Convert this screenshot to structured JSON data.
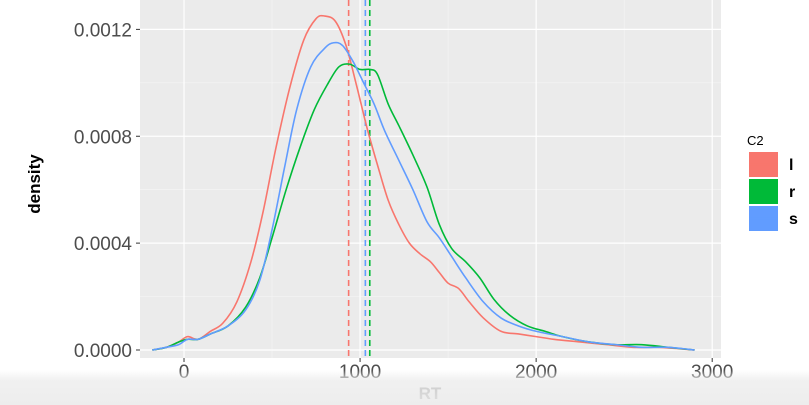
{
  "chart_data": {
    "type": "line",
    "title": "",
    "xlabel": "RT",
    "ylabel": "density",
    "xlim": [
      -250,
      3050
    ],
    "ylim": [
      -3e-05,
      0.00131
    ],
    "x_ticks": [
      0,
      1000,
      2000,
      3000
    ],
    "x_tick_labels": [
      "0",
      "1000",
      "2000",
      "3000"
    ],
    "y_ticks": [
      0.0,
      0.0004,
      0.0008,
      0.0012
    ],
    "y_tick_labels": [
      "0.0000",
      "0.0004",
      "0.0008",
      "0.0012"
    ],
    "grid": true,
    "legend": {
      "title": "C2",
      "placement": "right"
    },
    "series": [
      {
        "name": "l",
        "color": "#F8766D",
        "mean": 935,
        "points": [
          [
            -180,
            0.0
          ],
          [
            -100,
            1e-05
          ],
          [
            -30,
            3e-05
          ],
          [
            20,
            5e-05
          ],
          [
            80,
            4e-05
          ],
          [
            150,
            7e-05
          ],
          [
            220,
            0.0001
          ],
          [
            300,
            0.00018
          ],
          [
            380,
            0.00033
          ],
          [
            450,
            0.00052
          ],
          [
            520,
            0.00075
          ],
          [
            600,
            0.00098
          ],
          [
            680,
            0.00116
          ],
          [
            750,
            0.00124
          ],
          [
            800,
            0.00125
          ],
          [
            860,
            0.00123
          ],
          [
            920,
            0.00114
          ],
          [
            980,
            0.00099
          ],
          [
            1040,
            0.00083
          ],
          [
            1100,
            0.00069
          ],
          [
            1160,
            0.00056
          ],
          [
            1220,
            0.00047
          ],
          [
            1280,
            0.0004
          ],
          [
            1340,
            0.00036
          ],
          [
            1400,
            0.00033
          ],
          [
            1450,
            0.00029
          ],
          [
            1500,
            0.00025
          ],
          [
            1560,
            0.00023
          ],
          [
            1620,
            0.00018
          ],
          [
            1700,
            0.00012
          ],
          [
            1800,
            7e-05
          ],
          [
            1900,
            6e-05
          ],
          [
            2000,
            5e-05
          ],
          [
            2100,
            4e-05
          ],
          [
            2250,
            3e-05
          ],
          [
            2400,
            2e-05
          ],
          [
            2550,
            1e-05
          ],
          [
            2700,
            1e-05
          ],
          [
            2900,
            0.0
          ]
        ]
      },
      {
        "name": "r",
        "color": "#00BA38",
        "mean": 1055,
        "points": [
          [
            -180,
            0.0
          ],
          [
            -100,
            1e-05
          ],
          [
            -30,
            3e-05
          ],
          [
            20,
            4e-05
          ],
          [
            80,
            4e-05
          ],
          [
            150,
            6e-05
          ],
          [
            250,
            9e-05
          ],
          [
            350,
            0.00016
          ],
          [
            430,
            0.00027
          ],
          [
            500,
            0.00042
          ],
          [
            580,
            0.0006
          ],
          [
            660,
            0.00076
          ],
          [
            740,
            0.0009
          ],
          [
            820,
            0.001
          ],
          [
            880,
            0.00106
          ],
          [
            940,
            0.00107
          ],
          [
            1000,
            0.00105
          ],
          [
            1060,
            0.00105
          ],
          [
            1100,
            0.00103
          ],
          [
            1160,
            0.00092
          ],
          [
            1220,
            0.00084
          ],
          [
            1300,
            0.00073
          ],
          [
            1380,
            0.00061
          ],
          [
            1450,
            0.00047
          ],
          [
            1520,
            0.00038
          ],
          [
            1600,
            0.00033
          ],
          [
            1680,
            0.00027
          ],
          [
            1760,
            0.00019
          ],
          [
            1850,
            0.00013
          ],
          [
            1950,
            9e-05
          ],
          [
            2050,
            7e-05
          ],
          [
            2150,
            5e-05
          ],
          [
            2300,
            3e-05
          ],
          [
            2450,
            2e-05
          ],
          [
            2600,
            2e-05
          ],
          [
            2750,
            1e-05
          ],
          [
            2900,
            0.0
          ]
        ]
      },
      {
        "name": "s",
        "color": "#619CFF",
        "mean": 1030,
        "points": [
          [
            -180,
            0.0
          ],
          [
            -100,
            1e-05
          ],
          [
            -30,
            2e-05
          ],
          [
            20,
            4e-05
          ],
          [
            80,
            4e-05
          ],
          [
            150,
            6e-05
          ],
          [
            250,
            9e-05
          ],
          [
            350,
            0.00015
          ],
          [
            430,
            0.00026
          ],
          [
            500,
            0.00045
          ],
          [
            570,
            0.00068
          ],
          [
            640,
            0.0009
          ],
          [
            720,
            0.00106
          ],
          [
            800,
            0.00113
          ],
          [
            850,
            0.00115
          ],
          [
            900,
            0.00114
          ],
          [
            960,
            0.00108
          ],
          [
            1020,
            0.001
          ],
          [
            1080,
            0.00092
          ],
          [
            1140,
            0.00082
          ],
          [
            1220,
            0.00071
          ],
          [
            1300,
            0.0006
          ],
          [
            1380,
            0.00048
          ],
          [
            1450,
            0.00042
          ],
          [
            1520,
            0.00035
          ],
          [
            1600,
            0.00027
          ],
          [
            1700,
            0.00018
          ],
          [
            1800,
            0.00012
          ],
          [
            1900,
            9e-05
          ],
          [
            2000,
            7e-05
          ],
          [
            2150,
            5e-05
          ],
          [
            2300,
            3e-05
          ],
          [
            2450,
            2e-05
          ],
          [
            2600,
            1e-05
          ],
          [
            2750,
            1e-05
          ],
          [
            2900,
            0.0
          ]
        ]
      }
    ]
  }
}
